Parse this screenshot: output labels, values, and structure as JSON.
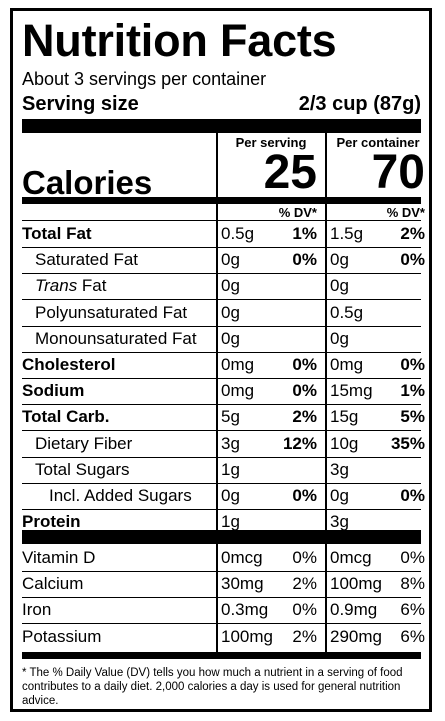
{
  "title": "Nutrition Facts",
  "servings_per_container": "About 3 servings per container",
  "serving_size": {
    "label": "Serving size",
    "value": "2/3 cup (87g)"
  },
  "columns": {
    "per_serving": {
      "header": "Per serving",
      "calories": "25"
    },
    "per_container": {
      "header": "Per container",
      "calories": "70"
    },
    "dv_header": "% DV*"
  },
  "calories_label": "Calories",
  "nutrients": [
    {
      "name": "Total Fat",
      "bold": true,
      "indent": 0,
      "serving": "0.5g",
      "serving_dv": "1%",
      "container": "1.5g",
      "container_dv": "2%"
    },
    {
      "name": "Saturated Fat",
      "bold": false,
      "indent": 1,
      "serving": "0g",
      "serving_dv": "0%",
      "container": "0g",
      "container_dv": "0%"
    },
    {
      "name_italic": "Trans",
      "name": " Fat",
      "bold": false,
      "indent": 1,
      "serving": "0g",
      "serving_dv": "",
      "container": "0g",
      "container_dv": ""
    },
    {
      "name": "Polyunsaturated Fat",
      "bold": false,
      "indent": 1,
      "serving": "0g",
      "serving_dv": "",
      "container": "0.5g",
      "container_dv": ""
    },
    {
      "name": "Monounsaturated Fat",
      "bold": false,
      "indent": 1,
      "serving": "0g",
      "serving_dv": "",
      "container": "0g",
      "container_dv": ""
    },
    {
      "name": "Cholesterol",
      "bold": true,
      "indent": 0,
      "serving": "0mg",
      "serving_dv": "0%",
      "container": "0mg",
      "container_dv": "0%"
    },
    {
      "name": "Sodium",
      "bold": true,
      "indent": 0,
      "serving": "0mg",
      "serving_dv": "0%",
      "container": "15mg",
      "container_dv": "1%"
    },
    {
      "name": "Total Carb.",
      "bold": true,
      "indent": 0,
      "serving": "5g",
      "serving_dv": "2%",
      "container": "15g",
      "container_dv": "5%"
    },
    {
      "name": "Dietary Fiber",
      "bold": false,
      "indent": 1,
      "serving": "3g",
      "serving_dv": "12%",
      "container": "10g",
      "container_dv": "35%"
    },
    {
      "name": "Total Sugars",
      "bold": false,
      "indent": 1,
      "serving": "1g",
      "serving_dv": "",
      "container": "3g",
      "container_dv": ""
    },
    {
      "name": "Incl. Added Sugars",
      "bold": false,
      "indent": 2,
      "serving": "0g",
      "serving_dv": "0%",
      "container": "0g",
      "container_dv": "0%"
    },
    {
      "name": "Protein",
      "bold": true,
      "indent": 0,
      "serving": "1g",
      "serving_dv": "",
      "container": "3g",
      "container_dv": ""
    }
  ],
  "vitamins": [
    {
      "name": "Vitamin D",
      "serving": "0mcg",
      "serving_dv": "0%",
      "container": "0mcg",
      "container_dv": "0%"
    },
    {
      "name": "Calcium",
      "serving": "30mg",
      "serving_dv": "2%",
      "container": "100mg",
      "container_dv": "8%"
    },
    {
      "name": "Iron",
      "serving": "0.3mg",
      "serving_dv": "0%",
      "container": "0.9mg",
      "container_dv": "6%"
    },
    {
      "name": "Potassium",
      "serving": "100mg",
      "serving_dv": "2%",
      "container": "290mg",
      "container_dv": "6%"
    }
  ],
  "footnote": "* The % Daily Value (DV) tells you how much a nutrient in a serving of food contributes to a daily diet. 2,000 calories a day is used for general nutrition advice."
}
